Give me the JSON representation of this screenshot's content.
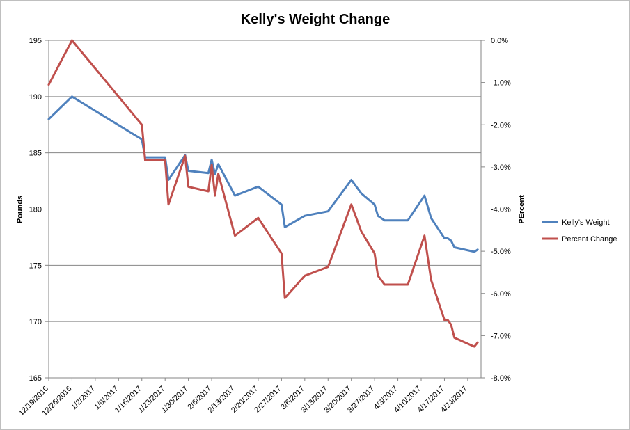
{
  "chart_data": {
    "type": "line",
    "title": "Kelly's Weight Change",
    "ylabel": "Pounds",
    "y2label": "PErcent",
    "ylim": [
      165,
      195
    ],
    "y_ticks": [
      165,
      170,
      175,
      180,
      185,
      190,
      195
    ],
    "y2lim": [
      -0.08,
      0.0
    ],
    "y2_ticks": [
      "0.0%",
      "-1.0%",
      "-2.0%",
      "-3.0%",
      "-4.0%",
      "-5.0%",
      "-6.0%",
      "-7.0%",
      "-8.0%"
    ],
    "x_range": [
      "2016-12-19",
      "2017-04-28"
    ],
    "x_ticks": [
      {
        "date": "2016-12-19",
        "label": "12/19/2016"
      },
      {
        "date": "2016-12-26",
        "label": "12/26/2016"
      },
      {
        "date": "2017-01-02",
        "label": "1/2/2017"
      },
      {
        "date": "2017-01-09",
        "label": "1/9/2017"
      },
      {
        "date": "2017-01-16",
        "label": "1/16/2017"
      },
      {
        "date": "2017-01-23",
        "label": "1/23/2017"
      },
      {
        "date": "2017-01-30",
        "label": "1/30/2017"
      },
      {
        "date": "2017-02-06",
        "label": "2/6/2017"
      },
      {
        "date": "2017-02-13",
        "label": "2/13/2017"
      },
      {
        "date": "2017-02-20",
        "label": "2/20/2017"
      },
      {
        "date": "2017-02-27",
        "label": "2/27/2017"
      },
      {
        "date": "2017-03-06",
        "label": "3/6/2017"
      },
      {
        "date": "2017-03-13",
        "label": "3/13/2017"
      },
      {
        "date": "2017-03-20",
        "label": "3/20/2017"
      },
      {
        "date": "2017-03-27",
        "label": "3/27/2017"
      },
      {
        "date": "2017-04-03",
        "label": "4/3/2017"
      },
      {
        "date": "2017-04-10",
        "label": "4/10/2017"
      },
      {
        "date": "2017-04-17",
        "label": "4/17/2017"
      },
      {
        "date": "2017-04-24",
        "label": "4/24/2017"
      }
    ],
    "grid": "horizontal",
    "legend_position": "right",
    "series": [
      {
        "name": "Kelly's Weight",
        "axis": "left",
        "color": "#4f81bd",
        "points": [
          [
            "2016-12-19",
            188.0
          ],
          [
            "2016-12-26",
            190.0
          ],
          [
            "2017-01-16",
            186.2
          ],
          [
            "2017-01-17",
            184.6
          ],
          [
            "2017-01-23",
            184.6
          ],
          [
            "2017-01-24",
            182.6
          ],
          [
            "2017-01-29",
            184.8
          ],
          [
            "2017-01-30",
            183.4
          ],
          [
            "2017-02-05",
            183.2
          ],
          [
            "2017-02-06",
            184.4
          ],
          [
            "2017-02-07",
            183.1
          ],
          [
            "2017-02-08",
            184.0
          ],
          [
            "2017-02-13",
            181.2
          ],
          [
            "2017-02-20",
            182.0
          ],
          [
            "2017-02-27",
            180.4
          ],
          [
            "2017-02-28",
            178.4
          ],
          [
            "2017-03-06",
            179.4
          ],
          [
            "2017-03-13",
            179.8
          ],
          [
            "2017-03-20",
            182.6
          ],
          [
            "2017-03-23",
            181.4
          ],
          [
            "2017-03-27",
            180.4
          ],
          [
            "2017-03-28",
            179.4
          ],
          [
            "2017-03-30",
            179.0
          ],
          [
            "2017-04-06",
            179.0
          ],
          [
            "2017-04-11",
            181.2
          ],
          [
            "2017-04-13",
            179.2
          ],
          [
            "2017-04-17",
            177.4
          ],
          [
            "2017-04-18",
            177.4
          ],
          [
            "2017-04-19",
            177.2
          ],
          [
            "2017-04-20",
            176.6
          ],
          [
            "2017-04-26",
            176.2
          ],
          [
            "2017-04-27",
            176.4
          ]
        ]
      },
      {
        "name": "Percent Change",
        "axis": "right",
        "color": "#c0504d",
        "points": [
          [
            "2016-12-19",
            -0.0105
          ],
          [
            "2016-12-26",
            0.0
          ],
          [
            "2017-01-16",
            -0.02
          ],
          [
            "2017-01-17",
            -0.0284
          ],
          [
            "2017-01-23",
            -0.0284
          ],
          [
            "2017-01-24",
            -0.0389
          ],
          [
            "2017-01-29",
            -0.0274
          ],
          [
            "2017-01-30",
            -0.0347
          ],
          [
            "2017-02-05",
            -0.0358
          ],
          [
            "2017-02-06",
            -0.0295
          ],
          [
            "2017-02-07",
            -0.0368
          ],
          [
            "2017-02-08",
            -0.0316
          ],
          [
            "2017-02-13",
            -0.0463
          ],
          [
            "2017-02-20",
            -0.0421
          ],
          [
            "2017-02-27",
            -0.0505
          ],
          [
            "2017-02-28",
            -0.0611
          ],
          [
            "2017-03-06",
            -0.0558
          ],
          [
            "2017-03-13",
            -0.0537
          ],
          [
            "2017-03-20",
            -0.0389
          ],
          [
            "2017-03-23",
            -0.0453
          ],
          [
            "2017-03-27",
            -0.0505
          ],
          [
            "2017-03-28",
            -0.0558
          ],
          [
            "2017-03-30",
            -0.0579
          ],
          [
            "2017-04-06",
            -0.0579
          ],
          [
            "2017-04-11",
            -0.0463
          ],
          [
            "2017-04-13",
            -0.0568
          ],
          [
            "2017-04-17",
            -0.0663
          ],
          [
            "2017-04-18",
            -0.0663
          ],
          [
            "2017-04-19",
            -0.0674
          ],
          [
            "2017-04-20",
            -0.0705
          ],
          [
            "2017-04-26",
            -0.0726
          ],
          [
            "2017-04-27",
            -0.0716
          ]
        ]
      }
    ]
  }
}
